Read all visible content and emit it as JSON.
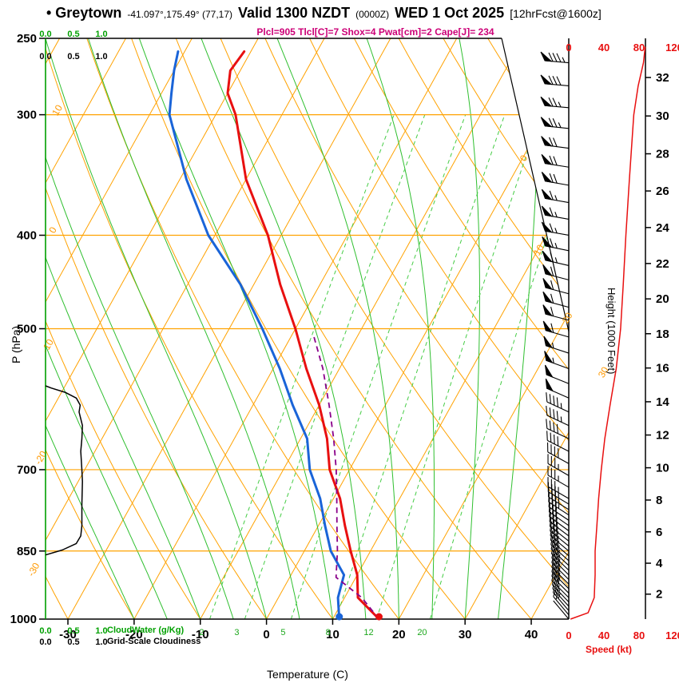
{
  "title": {
    "station": "• Greytown",
    "coords": "-41.097°,175.49° (77,17)",
    "valid": "Valid 1300 NZDT",
    "valid_z": "(0000Z)",
    "date": "WED 1 Oct 2025",
    "fcst": "[12hrFcst@1600z]"
  },
  "indices_line": "Plcl=905 Tlcl[C]=7 Shox=4 Pwat[cm]=2 Cape[J]= 234",
  "axes": {
    "pressure_label": "P (hPa)",
    "temp_label": "Temperature (C)",
    "height_label": "Height (1000 Feet)",
    "speed_label": "Speed (kt)",
    "cloudwater_label": "CloudWater (g/Kg)",
    "cloudiness_label": "Grid-Scale Cloudiness"
  },
  "colors": {
    "line_orange": "#ffa200",
    "line_green": "#2fbf2f",
    "line_green_dashed": "#45cc45",
    "temperature": "#e81010",
    "dewpoint": "#1a64d8",
    "parcel": "#8a008a",
    "speed": "#e81010",
    "cloudiness": "#000000",
    "cloudwater": "#00a000",
    "indices": "#cc0077",
    "axis_green": "#00a000",
    "label_orange": "#ff9900",
    "mixing_text": "#1da81d"
  },
  "chart_data": {
    "type": "skewt_logp_sounding",
    "indices": {
      "Plcl": 905,
      "Tlcl_C": 7,
      "Shox": 4,
      "Pwat_cm": 2,
      "Cape_J": 234
    },
    "pressure_ticks": [
      250,
      300,
      400,
      500,
      700,
      850,
      1000
    ],
    "temp_ticks_c": [
      -30,
      -20,
      -10,
      0,
      10,
      20,
      30,
      40
    ],
    "height_ticks_kft": [
      2,
      4,
      6,
      8,
      10,
      12,
      14,
      16,
      18,
      20,
      22,
      24,
      26,
      28,
      30,
      32
    ],
    "speed_ticks_kt": [
      0,
      40,
      80,
      120
    ],
    "scale_ticks": [
      "0.0",
      "0.5",
      "1.0"
    ],
    "isotherm_inplot_labels_c": [
      0,
      10,
      20,
      30
    ],
    "dry_adiabat_labels_c": [
      10,
      0,
      -10,
      -20,
      -30
    ],
    "mixing_ratio_labels_gkg": [
      2,
      3,
      5,
      8,
      12,
      20
    ],
    "sounding": {
      "pressure_hpa": [
        1000,
        950,
        900,
        850,
        800,
        750,
        700,
        650,
        600,
        550,
        500,
        450,
        400,
        350,
        300,
        285,
        270,
        258
      ],
      "temperature_c": [
        17,
        12,
        10,
        7,
        4,
        1,
        -3,
        -6,
        -10,
        -15,
        -20,
        -26,
        -32,
        -40,
        -47,
        -50,
        -51.5,
        -51
      ],
      "dewpoint_c": [
        11,
        9,
        8,
        4,
        1,
        -2,
        -6,
        -9,
        -14,
        -19,
        -25,
        -32,
        -41,
        -49,
        -57,
        -58.5,
        -60,
        -61
      ]
    },
    "parcel": {
      "pressure_hpa": [
        1000,
        950,
        905,
        850,
        800,
        750,
        700,
        650,
        600,
        550,
        510
      ],
      "temperature_c": [
        17,
        12.6,
        7,
        5,
        2.8,
        0.5,
        -2,
        -5,
        -8.5,
        -12.5,
        -16.5
      ]
    },
    "wind_profile": {
      "pressure_hpa": [
        1000,
        985,
        950,
        900,
        850,
        800,
        750,
        700,
        650,
        600,
        550,
        500,
        450,
        400,
        350,
        300,
        280,
        265,
        255
      ],
      "speed_kt": [
        2,
        22,
        29,
        30,
        30,
        32,
        34,
        37,
        41,
        47,
        54,
        59,
        62,
        65,
        69,
        74,
        79,
        85,
        87
      ],
      "direction_deg": [
        320,
        320,
        315,
        315,
        310,
        305,
        300,
        300,
        295,
        295,
        290,
        285,
        285,
        280,
        280,
        275,
        275,
        275,
        270
      ]
    },
    "cloudiness_profile": {
      "pressure_hpa": [
        858,
        848,
        835,
        820,
        800,
        760,
        720,
        700,
        670,
        650,
        630,
        610,
        600,
        590,
        582,
        576,
        573
      ],
      "fraction": [
        0,
        0.3,
        0.55,
        0.63,
        0.65,
        0.65,
        0.66,
        0.65,
        0.63,
        0.65,
        0.66,
        0.6,
        0.62,
        0.55,
        0.35,
        0.1,
        0
      ]
    },
    "cloudwater_profile": {
      "pressure_hpa": [
        1000,
        250
      ],
      "values_g_per_kg": [
        0,
        0
      ]
    }
  }
}
